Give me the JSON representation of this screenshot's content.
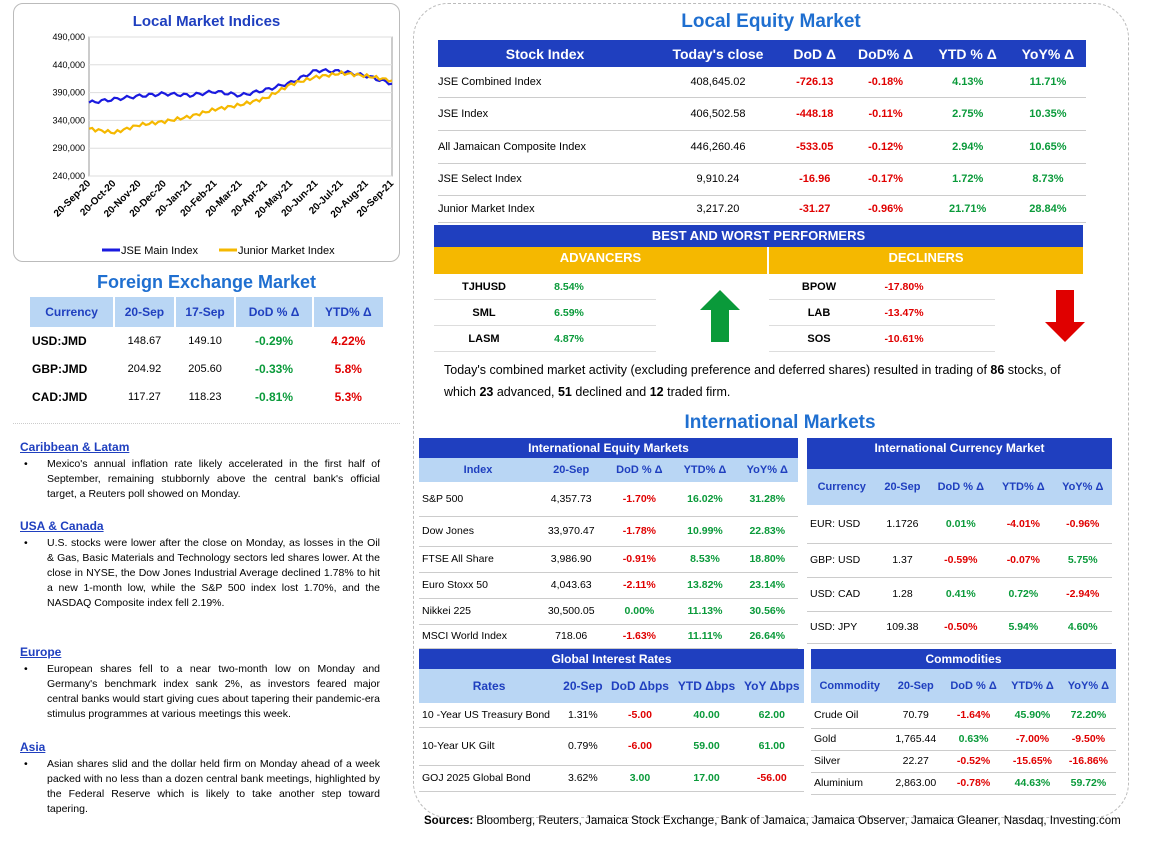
{
  "chart": {
    "title": "Local Market Indices",
    "yticks": [
      "490,000",
      "440,000",
      "390,000",
      "340,000",
      "290,000",
      "240,000"
    ],
    "xticks": [
      "20-Sep-20",
      "20-Oct-20",
      "20-Nov-20",
      "20-Dec-20",
      "20-Jan-21",
      "20-Feb-21",
      "20-Mar-21",
      "20-Apr-21",
      "20-May-21",
      "20-Jun-21",
      "20-Jul-21",
      "20-Aug-21",
      "20-Sep-21"
    ],
    "legend": [
      "JSE Main Index",
      "Junior Market Index"
    ],
    "colors": {
      "main": "#1a1adf",
      "junior": "#f5b800"
    }
  },
  "chart_data": {
    "type": "line",
    "title": "Local Market Indices",
    "x": [
      "20-Sep-20",
      "20-Oct-20",
      "20-Nov-20",
      "20-Dec-20",
      "20-Jan-21",
      "20-Feb-21",
      "20-Mar-21",
      "20-Apr-21",
      "20-May-21",
      "20-Jun-21",
      "20-Jul-21",
      "20-Aug-21",
      "20-Sep-21"
    ],
    "ylim": [
      240000,
      490000
    ],
    "series": [
      {
        "name": "JSE Main Index",
        "values": [
          372000,
          378000,
          384000,
          388000,
          385000,
          392000,
          385000,
          395000,
          408000,
          430000,
          428000,
          420000,
          406000
        ]
      },
      {
        "name": "Junior Market Index",
        "values": [
          325000,
          318000,
          332000,
          338000,
          347000,
          360000,
          368000,
          380000,
          405000,
          418000,
          425000,
          420000,
          412000
        ]
      }
    ]
  },
  "fx": {
    "title": "Foreign Exchange Market",
    "headers": [
      "Currency",
      "20-Sep",
      "17-Sep",
      "DoD % Δ",
      "YTD% Δ"
    ],
    "rows": [
      [
        "USD:JMD",
        "148.67",
        "149.10",
        "-0.29%",
        "4.22%"
      ],
      [
        "GBP:JMD",
        "204.92",
        "205.60",
        "-0.33%",
        "5.8%"
      ],
      [
        "CAD:JMD",
        "117.27",
        "118.23",
        "-0.81%",
        "5.3%"
      ]
    ]
  },
  "news": [
    {
      "heading": "Caribbean & Latam",
      "text": "Mexico's annual inflation rate likely accelerated in the first half of September, remaining stubbornly above the central bank's official target, a Reuters poll showed on Monday."
    },
    {
      "heading": "USA & Canada",
      "text": "U.S. stocks were lower after the close on Monday, as losses in the Oil & Gas, Basic Materials and Technology sectors led shares lower. At the close in NYSE, the Dow Jones Industrial Average declined 1.78% to hit a new 1-month low, while the S&P 500 index lost 1.70%, and the NASDAQ Composite index fell 2.19%."
    },
    {
      "heading": "Europe",
      "text": "European shares fell to a near two-month low on Monday and Germany's benchmark index sank 2%, as investors feared major central banks would start giving cues about tapering their pandemic-era stimulus programmes at various meetings this week."
    },
    {
      "heading": "Asia",
      "text": "Asian shares slid and the dollar held firm on Monday ahead of a week packed with no less than a dozen central bank meetings, highlighted by the Federal Reserve which is likely to take another step toward tapering."
    }
  ],
  "equity": {
    "title": "Local Equity Market",
    "headers": [
      "Stock Index",
      "Today's close",
      "DoD Δ",
      "DoD% Δ",
      "YTD % Δ",
      "YoY% Δ"
    ],
    "rows": [
      [
        "JSE Combined Index",
        "408,645.02",
        "-726.13",
        "-0.18%",
        "4.13%",
        "11.71%"
      ],
      [
        "JSE Index",
        "406,502.58",
        "-448.18",
        "-0.11%",
        "2.75%",
        "10.35%"
      ],
      [
        "All Jamaican Composite Index",
        "446,260.46",
        "-533.05",
        "-0.12%",
        "2.94%",
        "10.65%"
      ],
      [
        "JSE Select Index",
        "9,910.24",
        "-16.96",
        "-0.17%",
        "1.72%",
        "8.73%"
      ],
      [
        "Junior Market Index",
        "3,217.20",
        "-31.27",
        "-0.96%",
        "21.71%",
        "28.84%"
      ]
    ]
  },
  "performers": {
    "title": "BEST AND WORST PERFORMERS",
    "adv_label": "ADVANCERS",
    "dec_label": "DECLINERS",
    "advancers": [
      [
        "TJHUSD",
        "8.54%"
      ],
      [
        "SML",
        "6.59%"
      ],
      [
        "LASM",
        "4.87%"
      ]
    ],
    "decliners": [
      [
        "BPOW",
        "-17.80%"
      ],
      [
        "LAB",
        "-13.47%"
      ],
      [
        "SOS",
        "-10.61%"
      ]
    ]
  },
  "summary": {
    "p1": "Today's combined market activity (excluding preference and deferred shares) resulted in trading of ",
    "n1": "86",
    "p2": " stocks, of which ",
    "n2": "23",
    "p3": " advanced, ",
    "n3": "51",
    "p4": " declined and ",
    "n4": "12",
    "p5": " traded firm."
  },
  "intl": {
    "title": "International Markets",
    "equity": {
      "title": "International Equity Markets",
      "headers": [
        "Index",
        "20-Sep",
        "DoD % Δ",
        "YTD% Δ",
        "YoY% Δ"
      ],
      "rows": [
        [
          "S&P 500",
          "4,357.73",
          "-1.70%",
          "16.02%",
          "31.28%"
        ],
        [
          "Dow Jones",
          "33,970.47",
          "-1.78%",
          "10.99%",
          "22.83%"
        ],
        [
          "FTSE All Share",
          "3,986.90",
          "-0.91%",
          "8.53%",
          "18.80%"
        ],
        [
          "Euro Stoxx 50",
          "4,043.63",
          "-2.11%",
          "13.82%",
          "23.14%"
        ],
        [
          "Nikkei 225",
          "30,500.05",
          "0.00%",
          "11.13%",
          "30.56%"
        ],
        [
          "MSCI World Index",
          "718.06",
          "-1.63%",
          "11.11%",
          "26.64%"
        ]
      ]
    },
    "currency": {
      "title": "International Currency Market",
      "headers": [
        "Currency",
        "20-Sep",
        "DoD % Δ",
        "YTD% Δ",
        "YoY% Δ"
      ],
      "rows": [
        [
          "EUR: USD",
          "1.1726",
          "0.01%",
          "-4.01%",
          "-0.96%"
        ],
        [
          "GBP: USD",
          "1.37",
          "-0.59%",
          "-0.07%",
          "5.75%"
        ],
        [
          "USD: CAD",
          "1.28",
          "0.41%",
          "0.72%",
          "-2.94%"
        ],
        [
          "USD: JPY",
          "109.38",
          "-0.50%",
          "5.94%",
          "4.60%"
        ]
      ]
    },
    "rates": {
      "title": "Global Interest Rates",
      "headers": [
        "Rates",
        "20-Sep",
        "DoD Δbps",
        "YTD Δbps",
        "YoY Δbps"
      ],
      "rows": [
        [
          "10 -Year US Treasury Bond",
          "1.31%",
          "-5.00",
          "40.00",
          "62.00"
        ],
        [
          "10-Year UK Gilt",
          "0.79%",
          "-6.00",
          "59.00",
          "61.00"
        ],
        [
          "GOJ 2025 Global Bond",
          "3.62%",
          "3.00",
          "17.00",
          "-56.00"
        ]
      ]
    },
    "commodities": {
      "title": "Commodities",
      "headers": [
        "Commodity",
        "20-Sep",
        "DoD % Δ",
        "YTD% Δ",
        "YoY% Δ"
      ],
      "rows": [
        [
          "Crude Oil",
          "70.79",
          "-1.64%",
          "45.90%",
          "72.20%"
        ],
        [
          "Gold",
          "1,765.44",
          "0.63%",
          "-7.00%",
          "-9.50%"
        ],
        [
          "Silver",
          "22.27",
          "-0.52%",
          "-15.65%",
          "-16.86%"
        ],
        [
          "Aluminium",
          "2,863.00",
          "-0.78%",
          "44.63%",
          "59.72%"
        ]
      ]
    }
  },
  "sources": {
    "label": "Sources:",
    "text": " Bloomberg, Reuters, Jamaica Stock Exchange, Bank of Jamaica, Jamaica Observer, Jamaica Gleaner, Nasdaq, Investing.com"
  }
}
